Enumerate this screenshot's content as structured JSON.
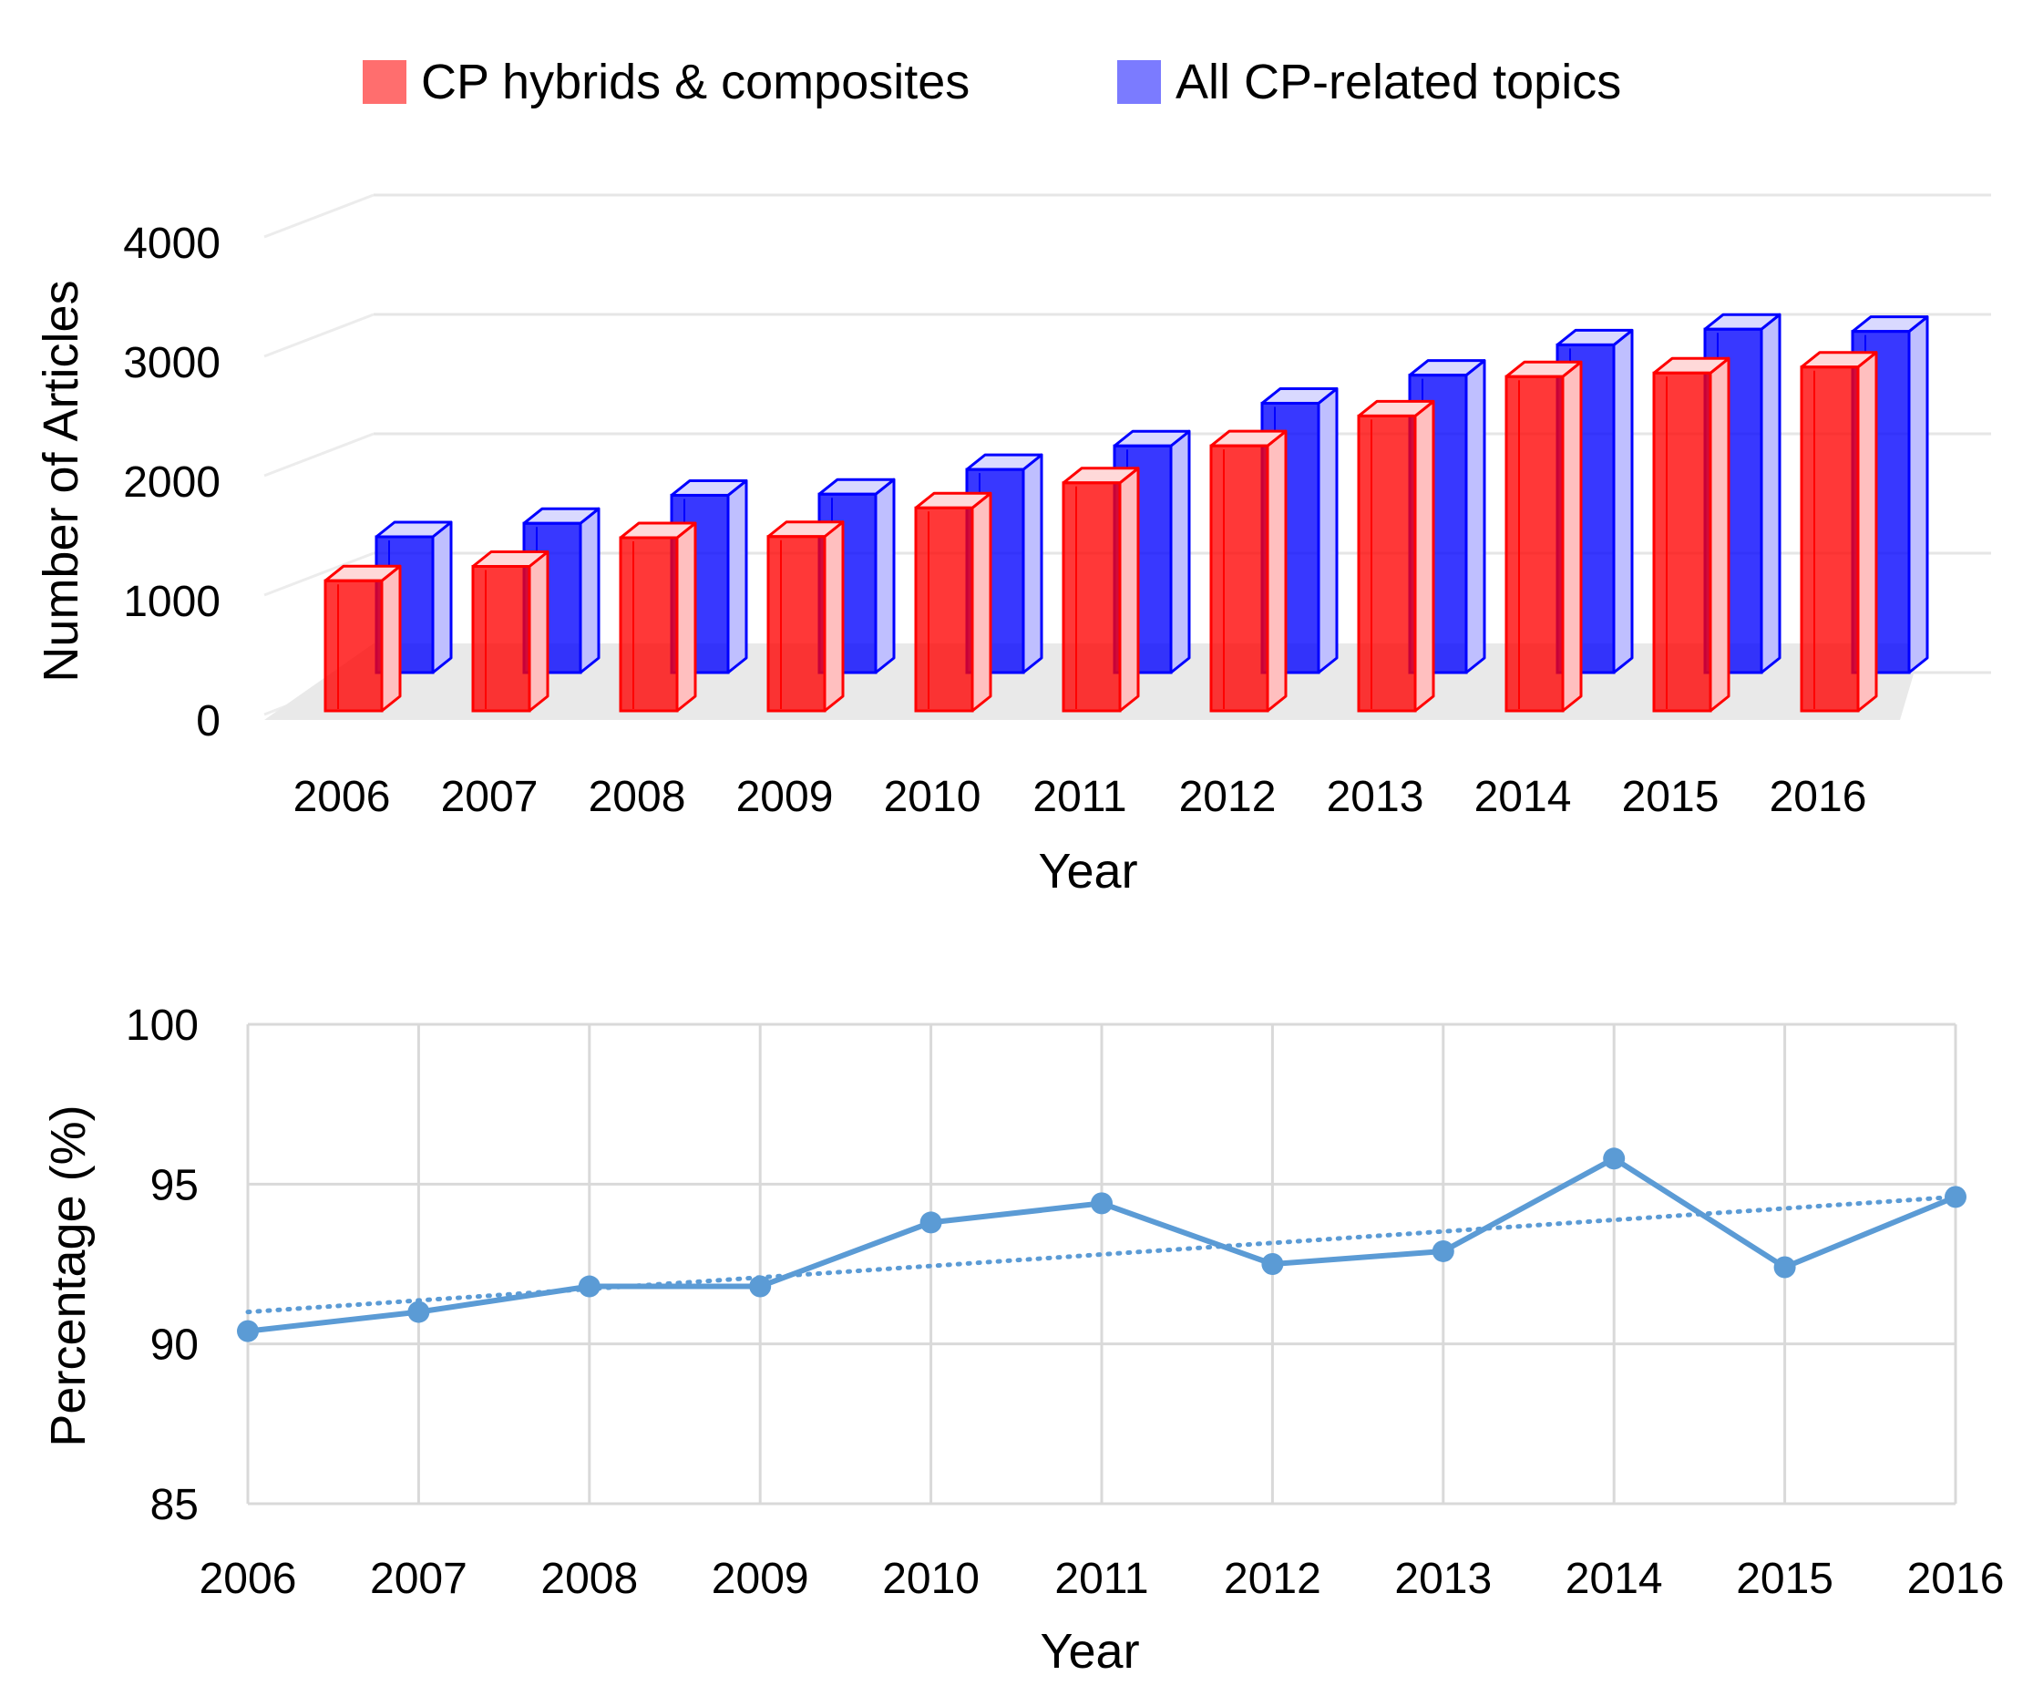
{
  "chart_data": [
    {
      "type": "bar",
      "style": "3d-clustered",
      "title": "",
      "xlabel": "Year",
      "ylabel": "Number of Articles",
      "ylim": [
        0,
        4000
      ],
      "yticks": [
        0,
        1000,
        2000,
        3000,
        4000
      ],
      "categories": [
        "2006",
        "2007",
        "2008",
        "2009",
        "2010",
        "2011",
        "2012",
        "2013",
        "2014",
        "2015",
        "2016"
      ],
      "series": [
        {
          "name": "CP hybrids & composites",
          "color": "#ff0000",
          "values": [
            1090,
            1210,
            1450,
            1460,
            1700,
            1910,
            2220,
            2470,
            2800,
            2830,
            2880
          ]
        },
        {
          "name": "All CP-related topics",
          "color": "#0000ff",
          "values": [
            1210,
            1330,
            1580,
            1590,
            1810,
            2020,
            2400,
            2650,
            2920,
            3060,
            3040
          ]
        }
      ],
      "legend": "top"
    },
    {
      "type": "line",
      "title": "",
      "xlabel": "Year",
      "ylabel": "Percentage (%)",
      "ylim": [
        85,
        100
      ],
      "yticks": [
        85,
        90,
        95,
        100
      ],
      "grid": true,
      "categories": [
        "2006",
        "2007",
        "2008",
        "2009",
        "2010",
        "2011",
        "2012",
        "2013",
        "2014",
        "2015",
        "2016"
      ],
      "series": [
        {
          "name": "Percentage",
          "color": "#5b9bd5",
          "values": [
            90.4,
            91.0,
            91.8,
            91.8,
            93.8,
            94.4,
            92.5,
            92.9,
            95.8,
            92.4,
            94.6
          ]
        }
      ],
      "trendline": {
        "type": "linear",
        "start": 91.0,
        "end": 94.6,
        "style": "dotted",
        "color": "#5b9bd5"
      }
    }
  ]
}
